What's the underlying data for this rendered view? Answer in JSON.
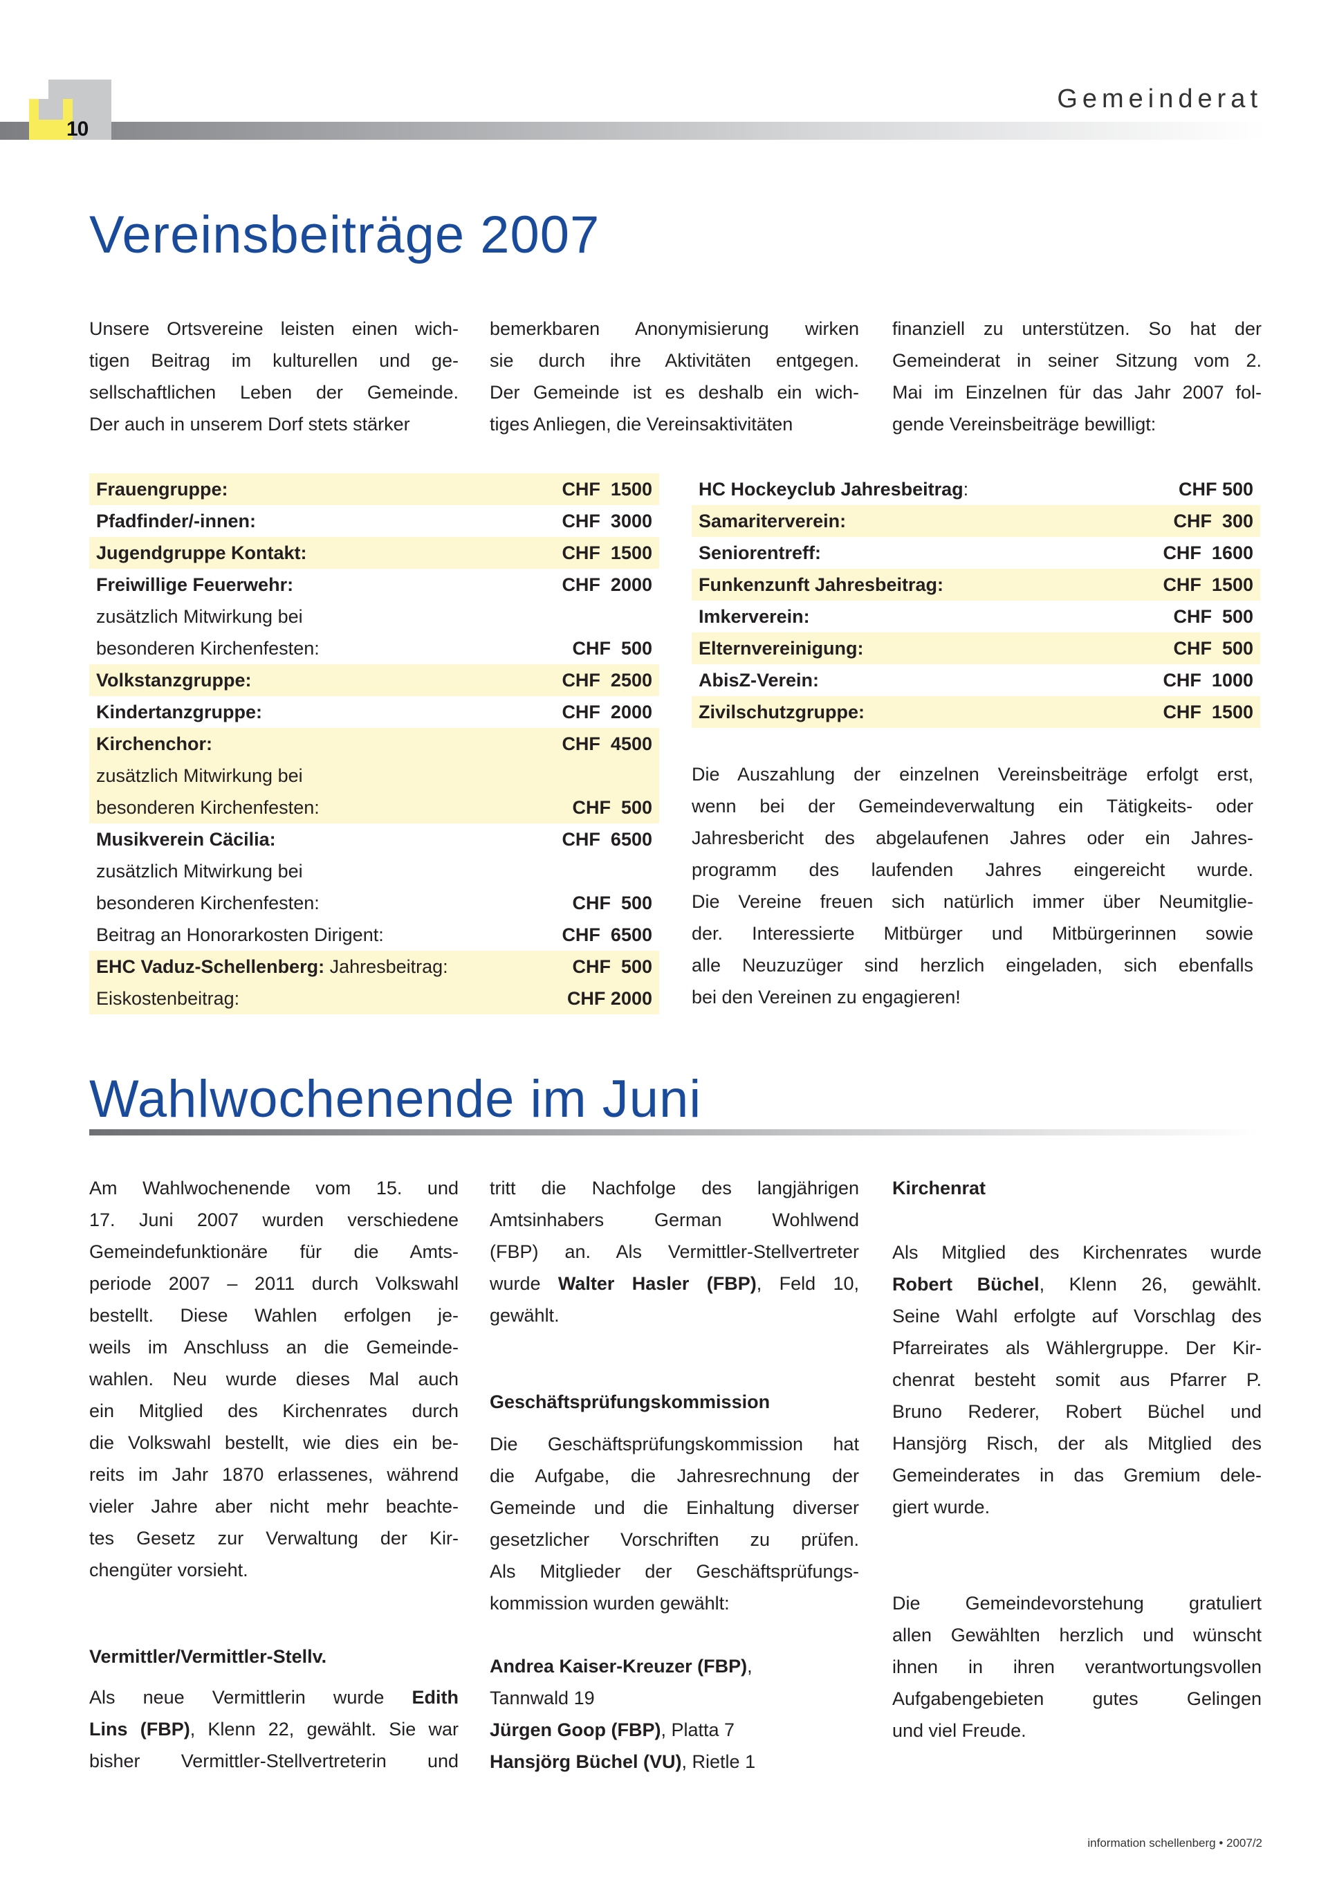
{
  "header": {
    "page_number": "10",
    "section": "Gemeinderat"
  },
  "article1": {
    "title": "Vereinsbeiträge 2007",
    "intro_columns": [
      [
        "Unsere Ortsvereine leisten einen wich-",
        "tigen Beitrag im kulturellen und ge-",
        "sellschaftlichen Leben der Gemeinde.",
        "Der auch in unserem Dorf stets stärker"
      ],
      [
        "bemerkbaren Anonymisierung wirken",
        "sie durch ihre Aktivitäten entgegen.",
        "Der Gemeinde ist es deshalb ein wich-",
        "tiges Anliegen, die Vereinsaktivitäten"
      ],
      [
        "finanziell zu unterstützen. So hat der",
        "Gemeinderat in seiner Sitzung vom 2.",
        "Mai im Einzelnen für das Jahr 2007 fol-",
        "gende Vereinsbeiträge bewilligt:"
      ]
    ],
    "left_table": [
      {
        "highlight": true,
        "rows": [
          {
            "label": "Frauengruppe:",
            "bold": true,
            "amount": "CHF  1500"
          }
        ]
      },
      {
        "highlight": false,
        "rows": [
          {
            "label": "Pfadfinder/-innen:",
            "bold": true,
            "amount": "CHF  3000"
          }
        ]
      },
      {
        "highlight": true,
        "rows": [
          {
            "label": "Jugendgruppe Kontakt:",
            "bold": true,
            "amount": "CHF  1500"
          }
        ]
      },
      {
        "highlight": false,
        "rows": [
          {
            "label": "Freiwillige Feuerwehr:",
            "bold": true,
            "amount": "CHF  2000"
          },
          {
            "label": "zusätzlich Mitwirkung bei",
            "bold": false,
            "amount": ""
          },
          {
            "label": "besonderen Kirchenfesten:",
            "bold": false,
            "amount": "CHF  500"
          }
        ]
      },
      {
        "highlight": true,
        "rows": [
          {
            "label": "Volkstanzgruppe:",
            "bold": true,
            "amount": "CHF  2500"
          }
        ]
      },
      {
        "highlight": false,
        "rows": [
          {
            "label": "Kindertanzgruppe:",
            "bold": true,
            "amount": "CHF  2000"
          }
        ]
      },
      {
        "highlight": true,
        "rows": [
          {
            "label": "Kirchenchor:",
            "bold": true,
            "amount": "CHF  4500"
          },
          {
            "label": "zusätzlich Mitwirkung bei",
            "bold": false,
            "amount": ""
          },
          {
            "label": "besonderen Kirchenfesten:",
            "bold": false,
            "amount": "CHF  500"
          }
        ]
      },
      {
        "highlight": false,
        "rows": [
          {
            "label": "Musikverein Cäcilia:",
            "bold": true,
            "amount": "CHF  6500"
          },
          {
            "label": "zusätzlich Mitwirkung bei",
            "bold": false,
            "amount": ""
          },
          {
            "label": "besonderen Kirchenfesten:",
            "bold": false,
            "amount": "CHF  500"
          },
          {
            "label": "Beitrag an Honorarkosten Dirigent:",
            "bold": false,
            "amount": "CHF  6500"
          }
        ]
      },
      {
        "highlight": true,
        "rows": [
          {
            "label": "EHC Vaduz-Schellenberg:",
            "bold": true,
            "suffix": " Jahresbeitrag:",
            "amount": "CHF  500"
          },
          {
            "label": "Eiskostenbeitrag:",
            "bold": false,
            "amount": "CHF 2000"
          }
        ]
      }
    ],
    "right_table": [
      {
        "highlight": false,
        "label": "HC Hockeyclub Jahresbeitrag",
        "suffix": ":",
        "amount": "CHF 500"
      },
      {
        "highlight": true,
        "label": "Samariterverein:",
        "amount": "CHF  300"
      },
      {
        "highlight": false,
        "label": "Seniorentreff:",
        "amount": "CHF  1600"
      },
      {
        "highlight": true,
        "label": "Funkenzunft Jahresbeitrag:",
        "amount": "CHF  1500"
      },
      {
        "highlight": false,
        "label": "Imkerverein:",
        "amount": "CHF  500"
      },
      {
        "highlight": true,
        "label": "Elternvereinigung:",
        "amount": "CHF  500"
      },
      {
        "highlight": false,
        "label": "AbisZ-Verein:",
        "amount": "CHF  1000"
      },
      {
        "highlight": true,
        "label": "Zivilschutzgruppe:",
        "amount": "CHF  1500"
      }
    ],
    "closing": [
      [
        {
          "t": "Die Auszahlung der einzelnen Vereinsbeiträge erfolgt erst,"
        }
      ],
      [
        {
          "t": "wenn bei der Gemeindeverwaltung ein Tätigkeits- oder"
        }
      ],
      [
        {
          "t": "Jahresbericht des abgelaufenen Jahres oder ein Jahres-"
        }
      ],
      [
        {
          "t": "programm des laufenden Jahres eingereicht wurde."
        }
      ],
      [
        {
          "t": "Die Vereine freuen sich natürlich immer über Neumitglie-"
        }
      ],
      [
        {
          "t": "der. Interessierte Mitbürger und Mitbürgerinnen sowie"
        }
      ],
      [
        {
          "t": "alle Neuzuzüger sind herzlich eingeladen, sich ebenfalls"
        }
      ],
      [
        {
          "t": "bei den Vereinen zu engagieren!"
        }
      ]
    ],
    "highlight_color": "#fdf8d2"
  },
  "article2": {
    "title": "Wahlwochenende im Juni",
    "col1_p1": [
      [
        {
          "t": "Am Wahlwochenende vom 15. und"
        }
      ],
      [
        {
          "t": "17. Juni 2007 wurden verschiedene"
        }
      ],
      [
        {
          "t": "Gemeindefunktionäre für die Amts-"
        }
      ],
      [
        {
          "t": "periode 2007 – 2011 durch Volkswahl"
        }
      ],
      [
        {
          "t": "bestellt. Diese Wahlen erfolgen je-"
        }
      ],
      [
        {
          "t": "weils im Anschluss an die Gemeinde-"
        }
      ],
      [
        {
          "t": "wahlen. Neu wurde dieses Mal auch"
        }
      ],
      [
        {
          "t": "ein Mitglied des Kirchenrates durch"
        }
      ],
      [
        {
          "t": "die Volkswahl bestellt, wie dies ein be-"
        }
      ],
      [
        {
          "t": "reits im Jahr 1870 erlassenes, während"
        }
      ],
      [
        {
          "t": "vieler Jahre aber nicht mehr beachte-"
        }
      ],
      [
        {
          "t": "tes Gesetz zur Verwaltung der Kir-"
        }
      ],
      [
        {
          "t": "chengüter vorsieht."
        }
      ]
    ],
    "col1_heading": "Vermittler/Vermittler-Stellv.",
    "col1_p2": [
      [
        {
          "t": "Als neue Vermittlerin wurde "
        },
        {
          "t": "Edith",
          "b": true
        }
      ],
      [
        {
          "t": "Lins (FBP)",
          "b": true
        },
        {
          "t": ", Klenn 22, gewählt. Sie war"
        }
      ],
      [
        {
          "t": "bisher Vermittler-Stellvertreterin und"
        }
      ]
    ],
    "col2_p1": [
      [
        {
          "t": "tritt die Nachfolge des langjährigen"
        }
      ],
      [
        {
          "t": "Amtsinhabers German Wohlwend"
        }
      ],
      [
        {
          "t": "(FBP) an. Als Vermittler-Stellvertreter"
        }
      ],
      [
        {
          "t": "wurde "
        },
        {
          "t": "Walter Hasler (FBP)",
          "b": true
        },
        {
          "t": ", Feld 10,"
        }
      ],
      [
        {
          "t": "gewählt."
        }
      ]
    ],
    "col2_heading": "Geschäftsprüfungskommission",
    "col2_p2": [
      [
        {
          "t": "Die Geschäftsprüfungskommission hat"
        }
      ],
      [
        {
          "t": "die Aufgabe, die Jahresrechnung der"
        }
      ],
      [
        {
          "t": "Gemeinde und die Einhaltung diverser"
        }
      ],
      [
        {
          "t": "gesetzlicher Vorschriften zu prüfen."
        }
      ],
      [
        {
          "t": "Als Mitglieder der Geschäftsprüfungs-"
        }
      ],
      [
        {
          "t": "kommission wurden gewählt:"
        }
      ]
    ],
    "col2_members": [
      [
        {
          "t": "Andrea Kaiser-Kreuzer (FBP)",
          "b": true
        },
        {
          "t": ","
        }
      ],
      [
        {
          "t": "Tannwald 19"
        }
      ],
      [
        {
          "t": "Jürgen Goop (FBP)",
          "b": true
        },
        {
          "t": ", Platta 7"
        }
      ],
      [
        {
          "t": "Hansjörg Büchel (VU)",
          "b": true
        },
        {
          "t": ", Rietle 1"
        }
      ]
    ],
    "col3_heading": "Kirchenrat",
    "col3_p1": [
      [
        {
          "t": "Als Mitglied des Kirchenrates wurde"
        }
      ],
      [
        {
          "t": "Robert Büchel",
          "b": true
        },
        {
          "t": ", Klenn 26, gewählt."
        }
      ],
      [
        {
          "t": "Seine Wahl erfolgte auf Vorschlag des"
        }
      ],
      [
        {
          "t": "Pfarreirates als Wählergruppe. Der Kir-"
        }
      ],
      [
        {
          "t": "chenrat besteht somit aus Pfarrer P."
        }
      ],
      [
        {
          "t": "Bruno Rederer, Robert Büchel und"
        }
      ],
      [
        {
          "t": "Hansjörg Risch, der als Mitglied des"
        }
      ],
      [
        {
          "t": "Gemeinderates in das Gremium dele-"
        }
      ],
      [
        {
          "t": "giert wurde."
        }
      ]
    ],
    "col3_p2": [
      [
        {
          "t": "Die Gemeindevorstehung gratuliert"
        }
      ],
      [
        {
          "t": "allen Gewählten herzlich und wünscht"
        }
      ],
      [
        {
          "t": "ihnen in ihren verantwortungsvollen"
        }
      ],
      [
        {
          "t": "Aufgabengebieten gutes Gelingen"
        }
      ],
      [
        {
          "t": "und viel Freude."
        }
      ]
    ]
  },
  "footer": {
    "publication": "information schellenberg  •  2007/2"
  },
  "colors": {
    "title_blue": "#1a4b9b",
    "accent_yellow": "#f8ec5a",
    "header_gray": "#c8c9cb"
  }
}
